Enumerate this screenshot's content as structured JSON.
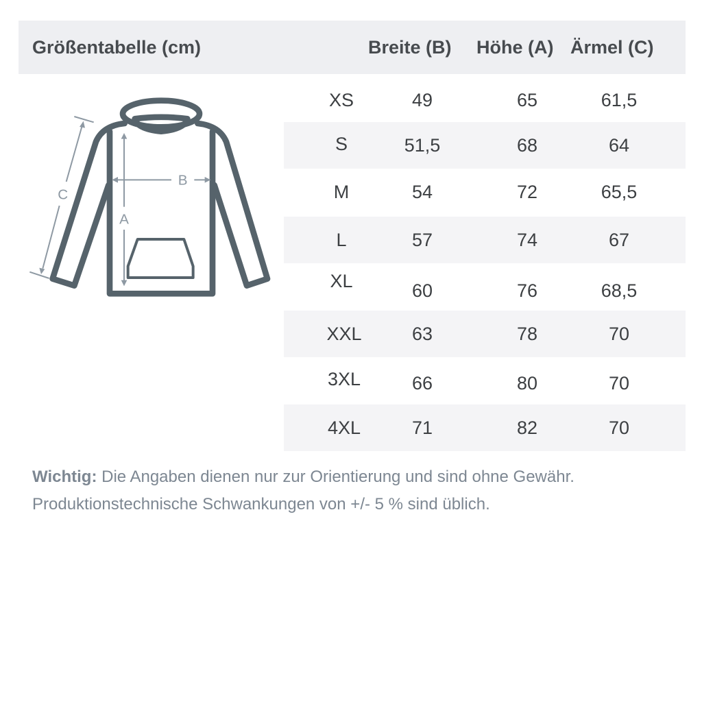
{
  "header": {
    "title": "Größentabelle (cm)",
    "columns": [
      "Breite (B)",
      "Höhe (A)",
      "Ärmel (C)"
    ]
  },
  "diagram": {
    "labels": {
      "a": "A",
      "b": "B",
      "c": "C"
    },
    "colors": {
      "outline": "#56636b",
      "arrows": "#8e99a3"
    }
  },
  "rows": [
    {
      "size": "XS",
      "breite": "49",
      "hoehe": "65",
      "aermel": "61,5"
    },
    {
      "size": "S",
      "breite": "51,5",
      "hoehe": "68",
      "aermel": "64"
    },
    {
      "size": "M",
      "breite": "54",
      "hoehe": "72",
      "aermel": "65,5"
    },
    {
      "size": "L",
      "breite": "57",
      "hoehe": "74",
      "aermel": "67"
    },
    {
      "size": "XL",
      "breite": "60",
      "hoehe": "76",
      "aermel": "68,5"
    },
    {
      "size": "XXL",
      "breite": "63",
      "hoehe": "78",
      "aermel": "70"
    },
    {
      "size": "3XL",
      "breite": "66",
      "hoehe": "80",
      "aermel": "70"
    },
    {
      "size": "4XL",
      "breite": "71",
      "hoehe": "82",
      "aermel": "70"
    }
  ],
  "note": {
    "label": "Wichtig:",
    "line1": "Die Angaben dienen nur zur Orientierung und sind ohne Gewähr.",
    "line2": "Produktionstechnische Schwankungen von +/- 5 % sind üblich."
  }
}
